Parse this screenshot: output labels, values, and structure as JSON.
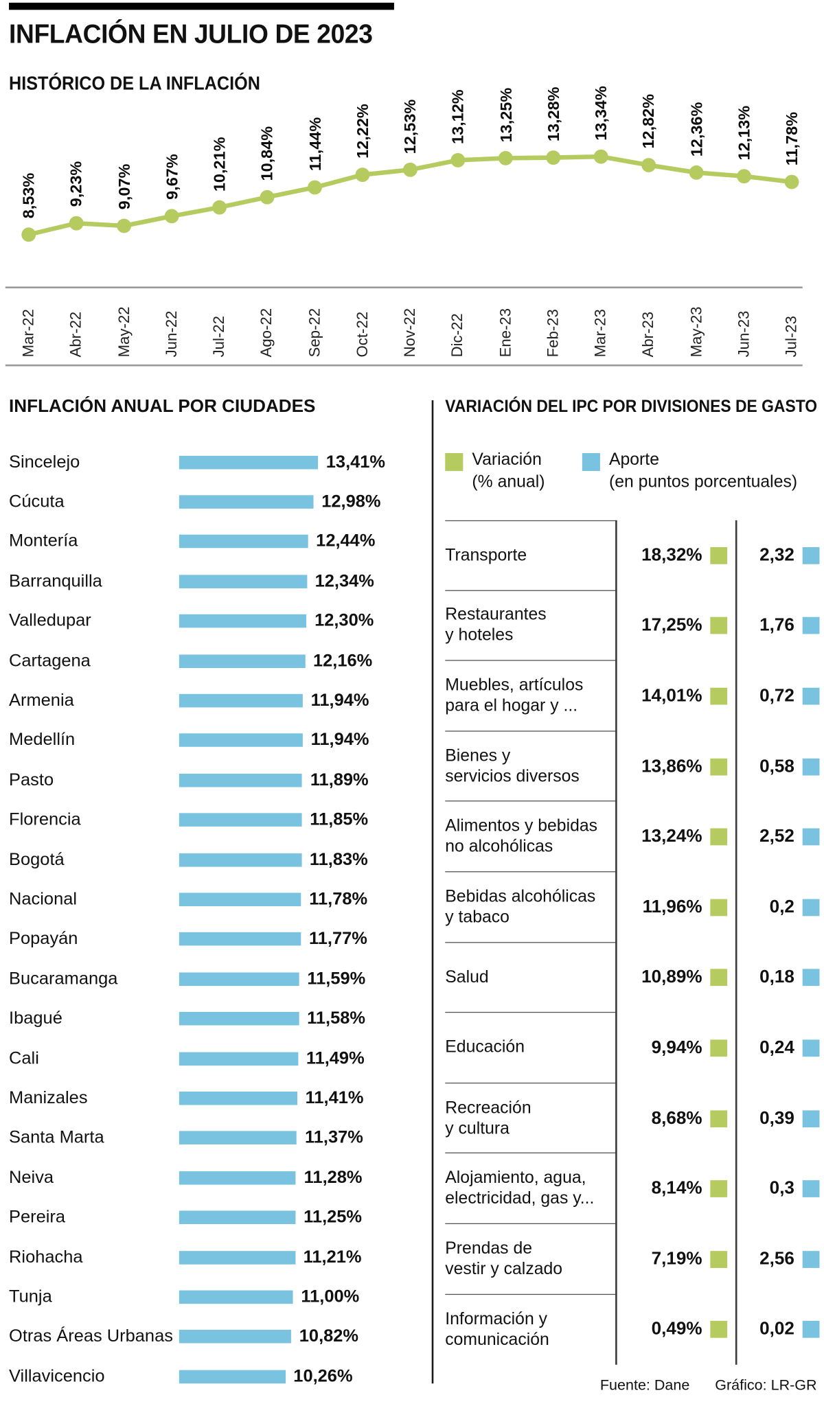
{
  "title": "INFLACIÓN EN JULIO DE 2023",
  "footer": {
    "source": "Fuente: Dane",
    "credit": "Gráfico: LR-GR"
  },
  "colors": {
    "green": "#b5cb5f",
    "blue": "#79c3e1"
  },
  "chart_data": [
    {
      "type": "line",
      "title": "HISTÓRICO DE LA INFLACIÓN",
      "categories": [
        "Mar-22",
        "Abr-22",
        "May-22",
        "Jun-22",
        "Jul-22",
        "Ago-22",
        "Sep-22",
        "Oct-22",
        "Nov-22",
        "Dic-22",
        "Ene-23",
        "Feb-23",
        "Mar-23",
        "Abr-23",
        "May-23",
        "Jun-23",
        "Jul-23"
      ],
      "values": [
        8.53,
        9.23,
        9.07,
        9.67,
        10.21,
        10.84,
        11.44,
        12.22,
        12.53,
        13.12,
        13.25,
        13.28,
        13.34,
        12.82,
        12.36,
        12.13,
        11.78
      ],
      "labels": [
        "8,53%",
        "9,23%",
        "9,07%",
        "9,67%",
        "10,21%",
        "10,84%",
        "11,44%",
        "12,22%",
        "12,53%",
        "13,12%",
        "13,25%",
        "13,28%",
        "13,34%",
        "12,82%",
        "12,36%",
        "12,13%",
        "11,78%"
      ],
      "ylim": [
        8,
        14
      ],
      "grid": false,
      "line_color": "#b5cb5f",
      "legend_position": "none"
    },
    {
      "type": "bar",
      "orientation": "horizontal",
      "title": "INFLACIÓN ANUAL POR CIUDADES",
      "categories": [
        "Sincelejo",
        "Cúcuta",
        "Montería",
        "Barranquilla",
        "Valledupar",
        "Cartagena",
        "Armenia",
        "Medellín",
        "Pasto",
        "Florencia",
        "Bogotá",
        "Nacional",
        "Popayán",
        "Bucaramanga",
        "Ibagué",
        "Cali",
        "Manizales",
        "Santa Marta",
        "Neiva",
        "Pereira",
        "Riohacha",
        "Tunja",
        "Otras Áreas Urbanas",
        "Villavicencio"
      ],
      "values": [
        13.41,
        12.98,
        12.44,
        12.34,
        12.3,
        12.16,
        11.94,
        11.94,
        11.89,
        11.85,
        11.83,
        11.78,
        11.77,
        11.59,
        11.58,
        11.49,
        11.41,
        11.37,
        11.28,
        11.25,
        11.21,
        11.0,
        10.82,
        10.26
      ],
      "labels": [
        "13,41%",
        "12,98%",
        "12,44%",
        "12,34%",
        "12,30%",
        "12,16%",
        "11,94%",
        "11,94%",
        "11,89%",
        "11,85%",
        "11,83%",
        "11,78%",
        "11,77%",
        "11,59%",
        "11,58%",
        "11,49%",
        "11,41%",
        "11,37%",
        "11,28%",
        "11,25%",
        "11,21%",
        "11,00%",
        "10,82%",
        "10,26%"
      ],
      "bar_color": "#79c3e1",
      "grid": false
    },
    {
      "type": "table",
      "title": "VARIACIÓN DEL IPC POR DIVISIONES DE GASTO",
      "legend": {
        "variation": {
          "line1": "Variación",
          "line2": "(% anual)"
        },
        "aporte": {
          "line1": "Aporte",
          "line2": "(en puntos porcentuales)"
        }
      },
      "rows": [
        {
          "label": "Transporte",
          "variation": "18,32%",
          "aporte": "2,32"
        },
        {
          "label": "Restaurantes\ny hoteles",
          "variation": "17,25%",
          "aporte": "1,76"
        },
        {
          "label": "Muebles, artículos\npara el hogar y ...",
          "variation": "14,01%",
          "aporte": "0,72"
        },
        {
          "label": "Bienes y\nservicios diversos",
          "variation": "13,86%",
          "aporte": "0,58"
        },
        {
          "label": "Alimentos y bebidas\nno alcohólicas",
          "variation": "13,24%",
          "aporte": "2,52"
        },
        {
          "label": "Bebidas alcohólicas\ny tabaco",
          "variation": "11,96%",
          "aporte": "0,2"
        },
        {
          "label": "Salud",
          "variation": "10,89%",
          "aporte": "0,18"
        },
        {
          "label": "Educación",
          "variation": "9,94%",
          "aporte": "0,24"
        },
        {
          "label": "Recreación\ny cultura",
          "variation": "8,68%",
          "aporte": "0,39"
        },
        {
          "label": "Alojamiento, agua,\nelectricidad, gas y...",
          "variation": "8,14%",
          "aporte": "0,3"
        },
        {
          "label": "Prendas de\nvestir y calzado",
          "variation": "7,19%",
          "aporte": "2,56"
        },
        {
          "label": "Información y\ncomunicación",
          "variation": "0,49%",
          "aporte": "0,02"
        }
      ]
    }
  ]
}
